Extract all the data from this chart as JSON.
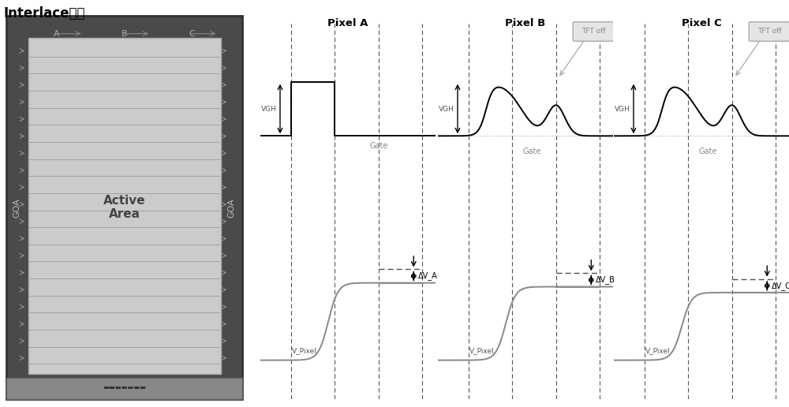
{
  "title": "Interlace驱动",
  "bg_color": "#ffffff",
  "panel_bg": "#555555",
  "panel_active_bg": "#c8c8c8",
  "pixel_titles": [
    "Pixel A",
    "Pixel B",
    "Pixel C"
  ],
  "gate_label": "Gate",
  "tft_off_label": "TFT off",
  "vgh_label": "VGH",
  "vpixel_labels": [
    "V_Pixel",
    "V_Pixel",
    "V_Pixel"
  ],
  "dv_labels": [
    "ΔV_A",
    "ΔV_B",
    "ΔV_C"
  ],
  "goa_label": "GOA",
  "active_area_label": "Active\nArea",
  "col_labels": [
    "A",
    "B",
    "C"
  ],
  "n_scanlines": 19
}
